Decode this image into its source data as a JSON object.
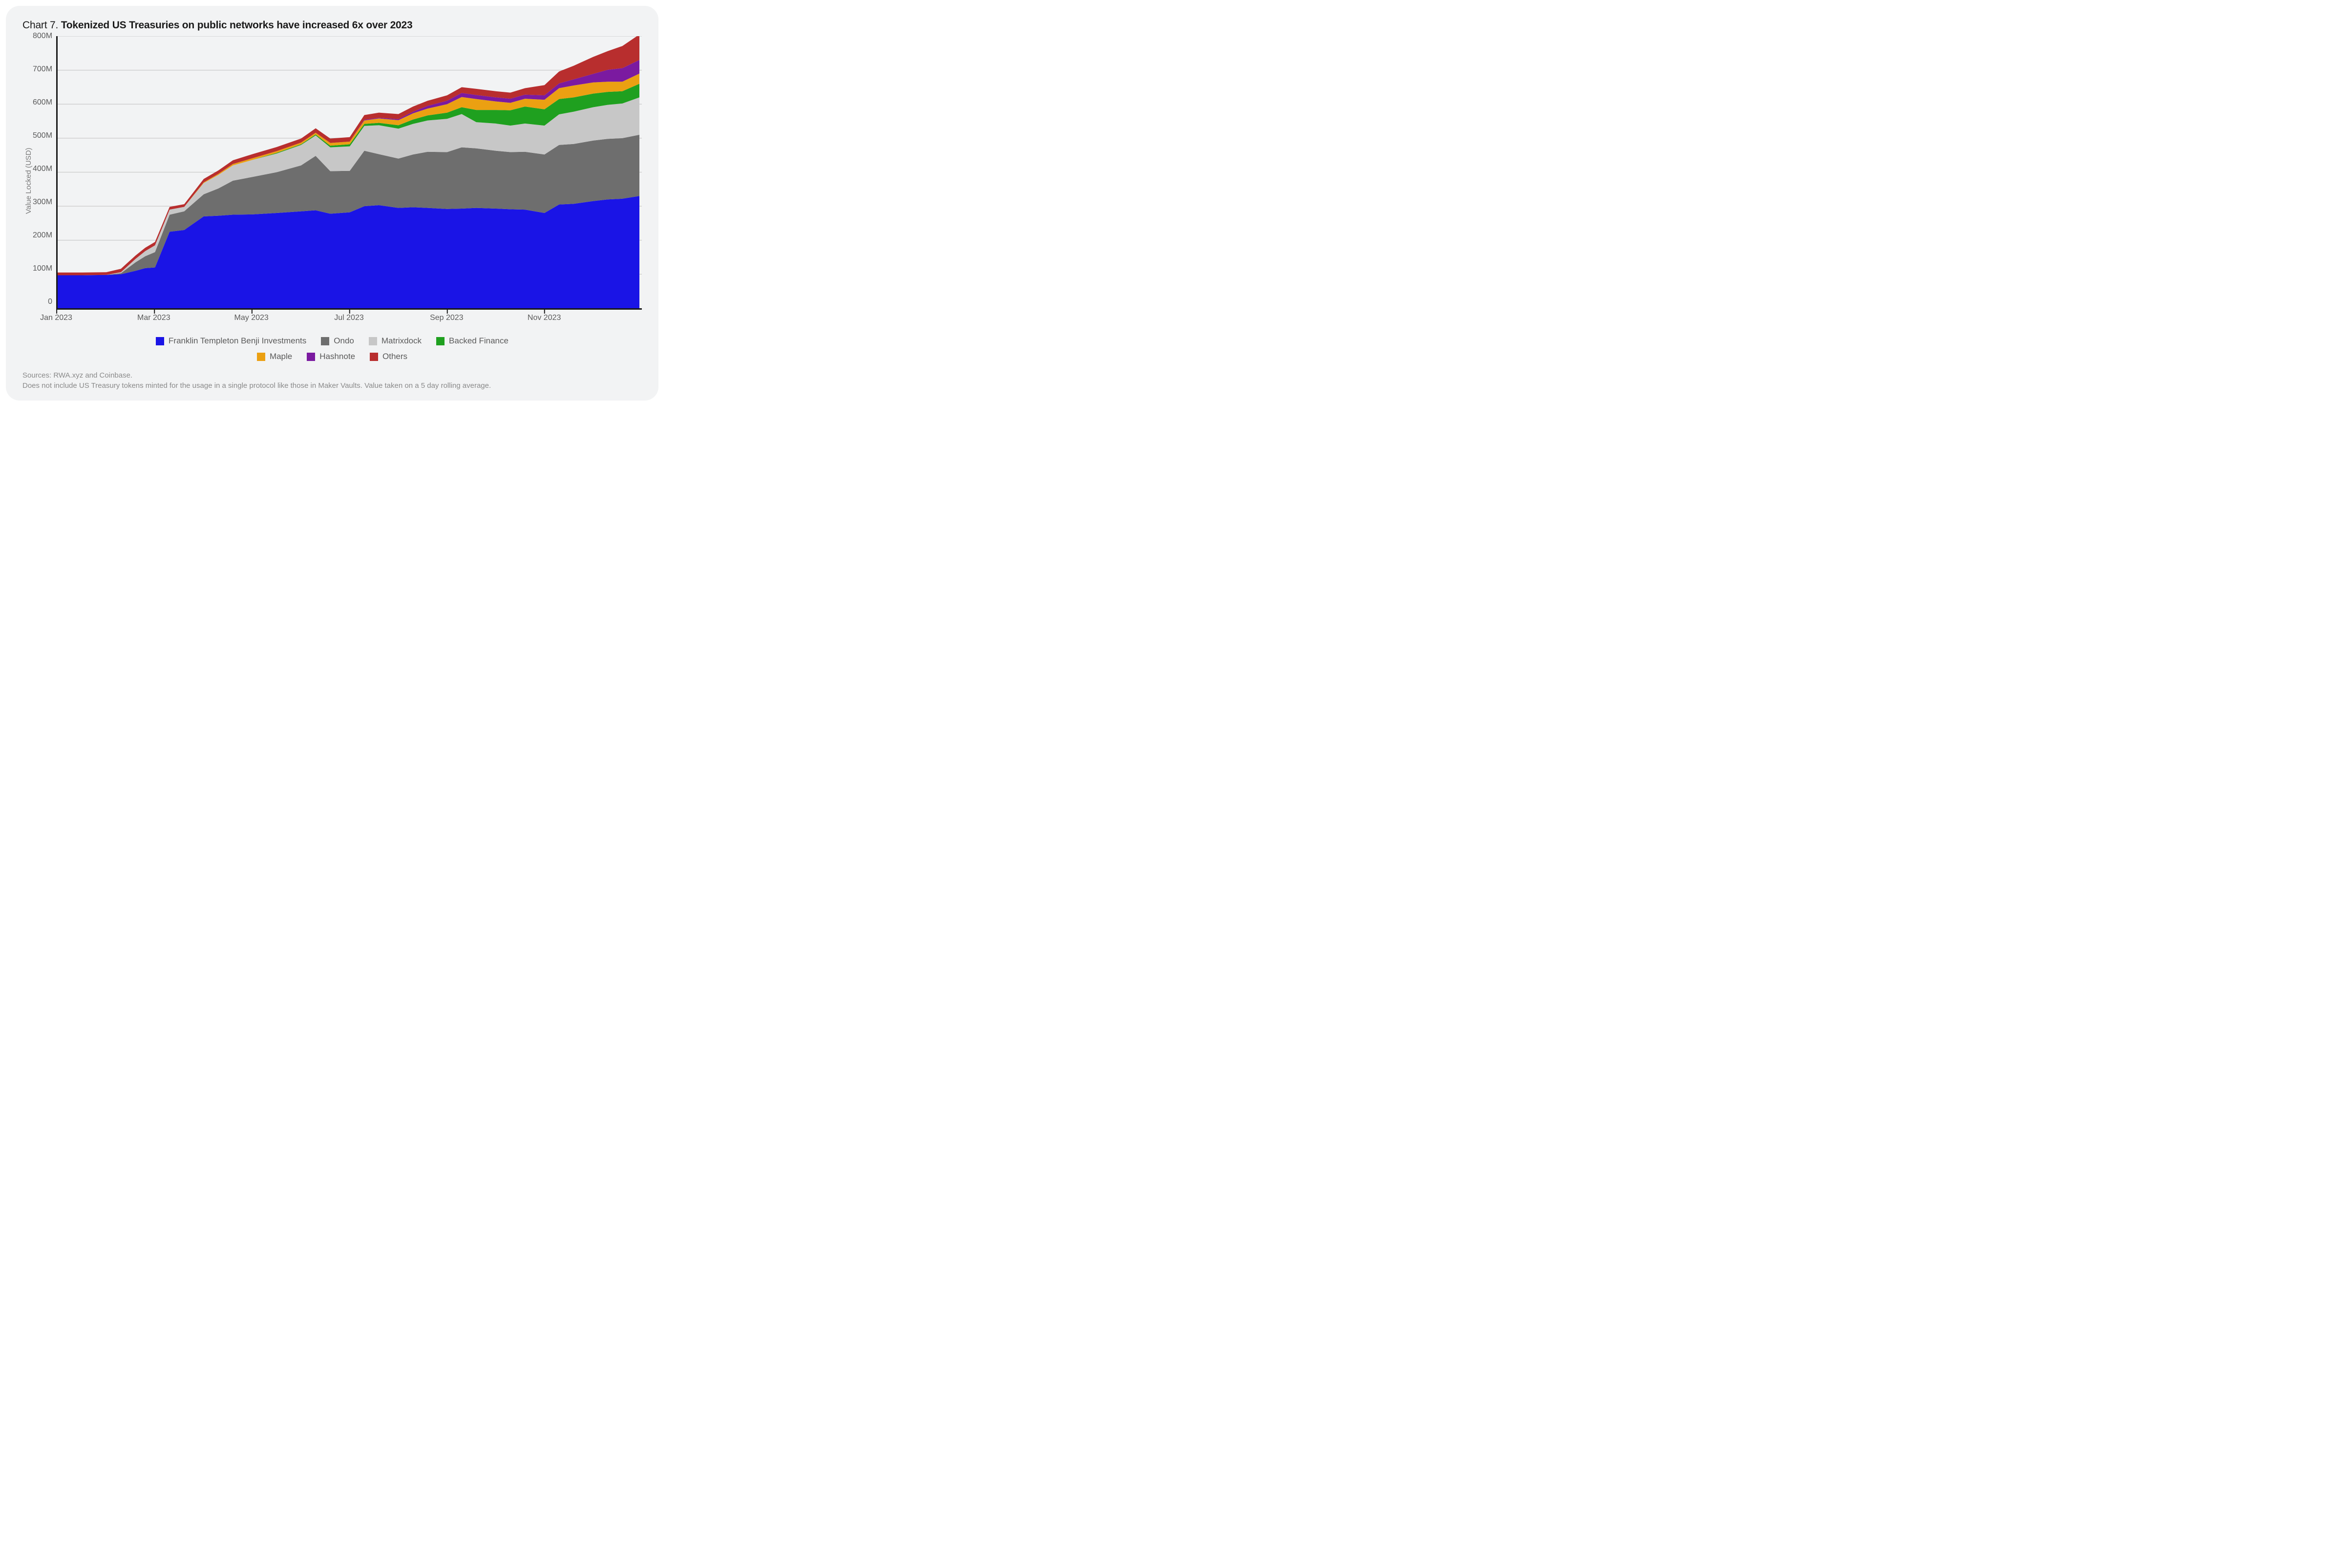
{
  "title": {
    "prefix": "Chart 7. ",
    "main": "Tokenized US Treasuries on public networks have increased 6x over 2023"
  },
  "chart": {
    "type": "stacked-area",
    "y_label": "Value Locked (USD)",
    "y_axis": {
      "min": 0,
      "max": 800,
      "ticks": [
        0,
        100,
        200,
        300,
        400,
        500,
        600,
        700,
        800
      ],
      "tick_labels": [
        "0",
        "100M",
        "200M",
        "300M",
        "400M",
        "500M",
        "600M",
        "700M",
        "800M"
      ]
    },
    "x_axis": {
      "min": 0,
      "max": 12,
      "ticks": [
        0,
        2,
        4,
        6,
        8,
        10
      ],
      "tick_labels": [
        "Jan 2023",
        "Mar 2023",
        "May 2023",
        "Jul 2023",
        "Sep 2023",
        "Nov 2023"
      ]
    },
    "background_color": "#f2f3f4",
    "grid_color": "#c9c9c9",
    "axis_color": "#1a1a1a",
    "x": [
      0,
      0.5,
      1,
      1.3,
      1.6,
      1.8,
      2,
      2.3,
      2.6,
      3,
      3.3,
      3.6,
      4,
      4.5,
      5,
      5.3,
      5.6,
      6,
      6.3,
      6.6,
      7,
      7.3,
      7.6,
      8,
      8.3,
      8.6,
      9,
      9.3,
      9.6,
      10,
      10.3,
      10.6,
      11,
      11.3,
      11.6,
      11.95
    ],
    "series": [
      {
        "name": "Franklin Templeton Benji Investments",
        "color": "#1a14e6",
        "y": [
          97,
          97,
          98,
          100,
          110,
          118,
          120,
          225,
          230,
          270,
          272,
          275,
          276,
          280,
          285,
          288,
          278,
          282,
          300,
          303,
          295,
          297,
          295,
          292,
          293,
          295,
          293,
          291,
          290,
          280,
          305,
          307,
          315,
          320,
          322,
          330
        ]
      },
      {
        "name": "Ondo",
        "color": "#6e6e6e",
        "y": [
          0,
          0,
          0,
          3,
          25,
          35,
          45,
          50,
          55,
          65,
          80,
          100,
          110,
          120,
          135,
          160,
          125,
          122,
          163,
          150,
          145,
          155,
          165,
          167,
          180,
          175,
          170,
          168,
          170,
          172,
          175,
          176,
          178,
          178,
          178,
          180
        ]
      },
      {
        "name": "Matrixdock",
        "color": "#c7c7c7",
        "y": [
          0,
          0,
          0,
          3,
          10,
          15,
          20,
          15,
          13,
          33,
          40,
          45,
          50,
          55,
          60,
          60,
          70,
          72,
          73,
          85,
          88,
          90,
          92,
          98,
          98,
          77,
          80,
          78,
          83,
          85,
          90,
          95,
          98,
          100,
          102,
          110
        ]
      },
      {
        "name": "Backed Finance",
        "color": "#1fa01f",
        "y": [
          0,
          0,
          0,
          0,
          0,
          0,
          0,
          0,
          0,
          0,
          0,
          0,
          0,
          2,
          2,
          3,
          5,
          6,
          6,
          7,
          10,
          13,
          15,
          18,
          20,
          36,
          40,
          45,
          50,
          48,
          45,
          42,
          40,
          38,
          36,
          40
        ]
      },
      {
        "name": "Maple",
        "color": "#eba012",
        "y": [
          0,
          0,
          0,
          0,
          0,
          0,
          0,
          0,
          0,
          2,
          3,
          4,
          5,
          5,
          5,
          5,
          8,
          8,
          10,
          13,
          15,
          18,
          20,
          25,
          30,
          32,
          25,
          22,
          23,
          28,
          32,
          35,
          33,
          30,
          28,
          30
        ]
      },
      {
        "name": "Hashnote",
        "color": "#7b1aa0",
        "y": [
          0,
          0,
          0,
          0,
          0,
          0,
          0,
          0,
          0,
          0,
          0,
          0,
          0,
          0,
          0,
          0,
          0,
          0,
          2,
          2,
          3,
          5,
          8,
          10,
          12,
          12,
          12,
          12,
          12,
          13,
          14,
          18,
          25,
          35,
          40,
          40
        ]
      },
      {
        "name": "Others",
        "color": "#b82e2e",
        "y": [
          8,
          8,
          8,
          10,
          10,
          10,
          10,
          8,
          8,
          10,
          10,
          11,
          12,
          12,
          12,
          13,
          13,
          13,
          14,
          15,
          15,
          15,
          15,
          16,
          17,
          18,
          18,
          18,
          19,
          30,
          35,
          40,
          50,
          55,
          65,
          75
        ]
      }
    ]
  },
  "legend": {
    "row1": [
      "Franklin Templeton Benji Investments",
      "Ondo",
      "Matrixdock",
      "Backed Finance"
    ],
    "row2": [
      "Maple",
      "Hashnote",
      "Others"
    ]
  },
  "sources": {
    "line1": "Sources: RWA.xyz and Coinbase.",
    "line2": "Does not include US Treasury tokens minted for the usage in a single protocol like those in Maker Vaults. Value taken on a 5 day rolling average."
  },
  "fonts": {
    "title_pt": 21,
    "axis_tick_pt": 16,
    "axis_label_pt": 15,
    "legend_pt": 17,
    "sources_pt": 15
  }
}
